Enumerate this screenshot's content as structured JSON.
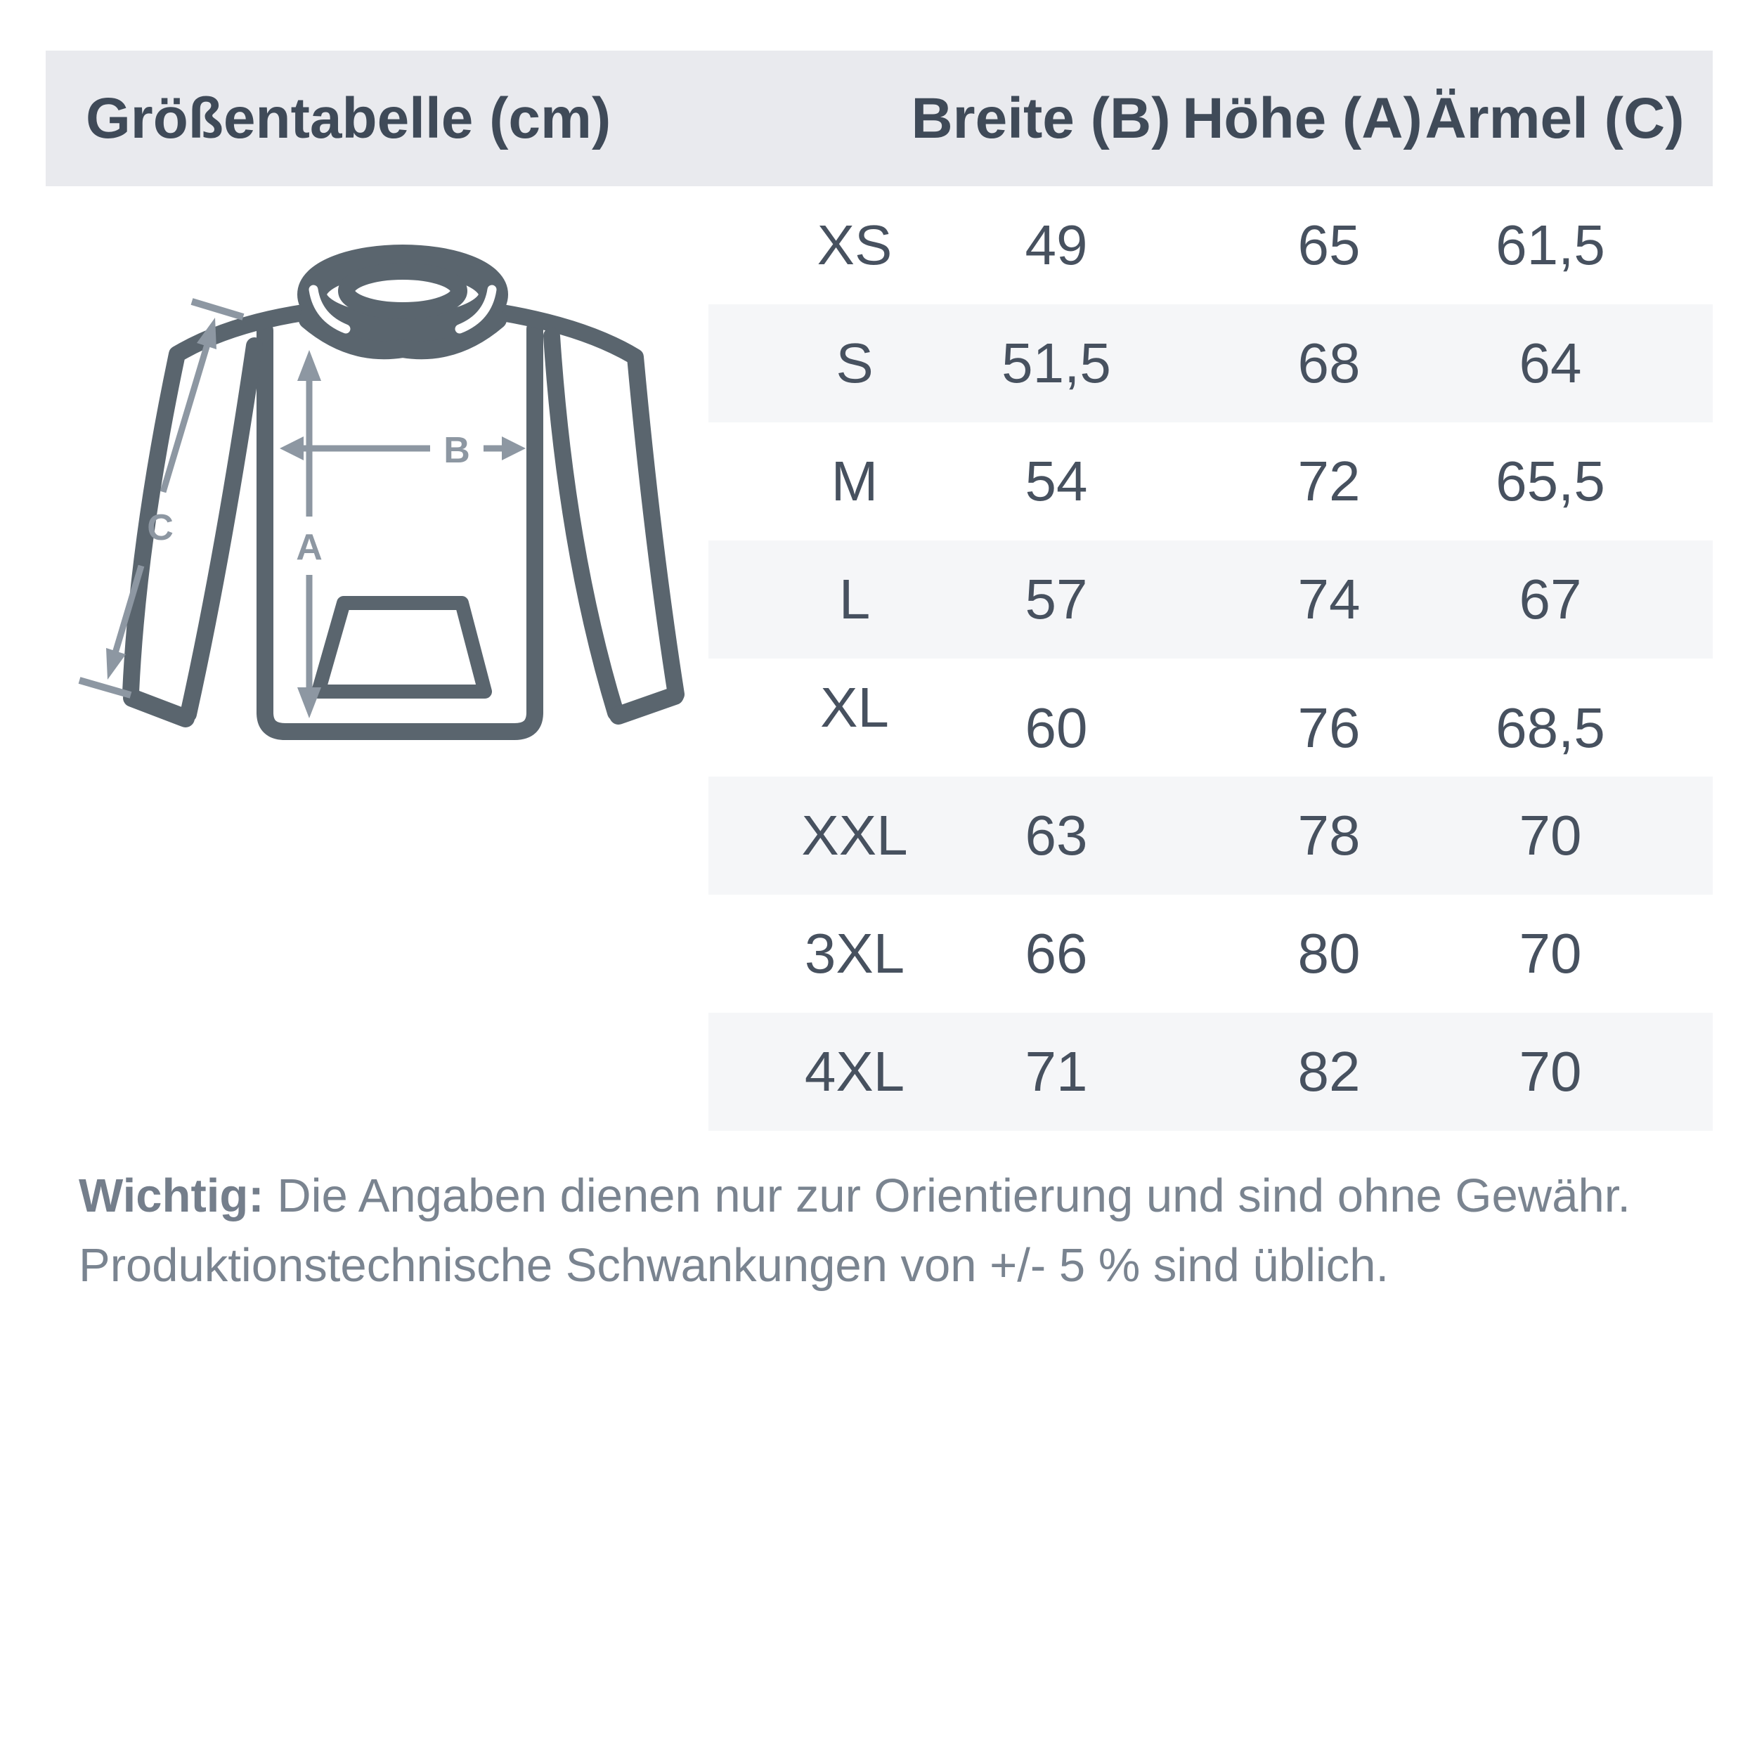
{
  "header": {
    "title": "Größentabelle (cm)",
    "columns": [
      "Breite (B)",
      "Höhe (A)",
      "Ärmel (C)"
    ]
  },
  "table": {
    "column_keys": [
      "size",
      "breite",
      "hoehe",
      "aermel"
    ],
    "rows": [
      {
        "size": "XS",
        "breite": "49",
        "hoehe": "65",
        "aermel": "61,5"
      },
      {
        "size": "S",
        "breite": "51,5",
        "hoehe": "68",
        "aermel": "64"
      },
      {
        "size": "M",
        "breite": "54",
        "hoehe": "72",
        "aermel": "65,5"
      },
      {
        "size": "L",
        "breite": "57",
        "hoehe": "74",
        "aermel": "67"
      },
      {
        "size": "XL",
        "breite": "60",
        "hoehe": "76",
        "aermel": "68,5"
      },
      {
        "size": "XXL",
        "breite": "63",
        "hoehe": "78",
        "aermel": "70"
      },
      {
        "size": "3XL",
        "breite": "66",
        "hoehe": "80",
        "aermel": "70"
      },
      {
        "size": "4XL",
        "breite": "71",
        "hoehe": "82",
        "aermel": "70"
      }
    ]
  },
  "note": {
    "label": "Wichtig:",
    "line1": "Die Angaben dienen nur zur Orientierung und sind ohne Gewähr.",
    "line2": "Produktionstechnische Schwankungen von +/- 5 % sind üblich."
  },
  "diagram": {
    "labels": {
      "a": "A",
      "b": "B",
      "c": "C"
    }
  },
  "colors": {
    "header_bg": "#e9eaee",
    "band_bg": "#f5f6f8",
    "heading_text": "#3f4a58",
    "data_text": "#47515f",
    "note_text": "#7a8490",
    "hoodie_outline": "#5a656e",
    "measure_arrows": "#8d97a2"
  }
}
